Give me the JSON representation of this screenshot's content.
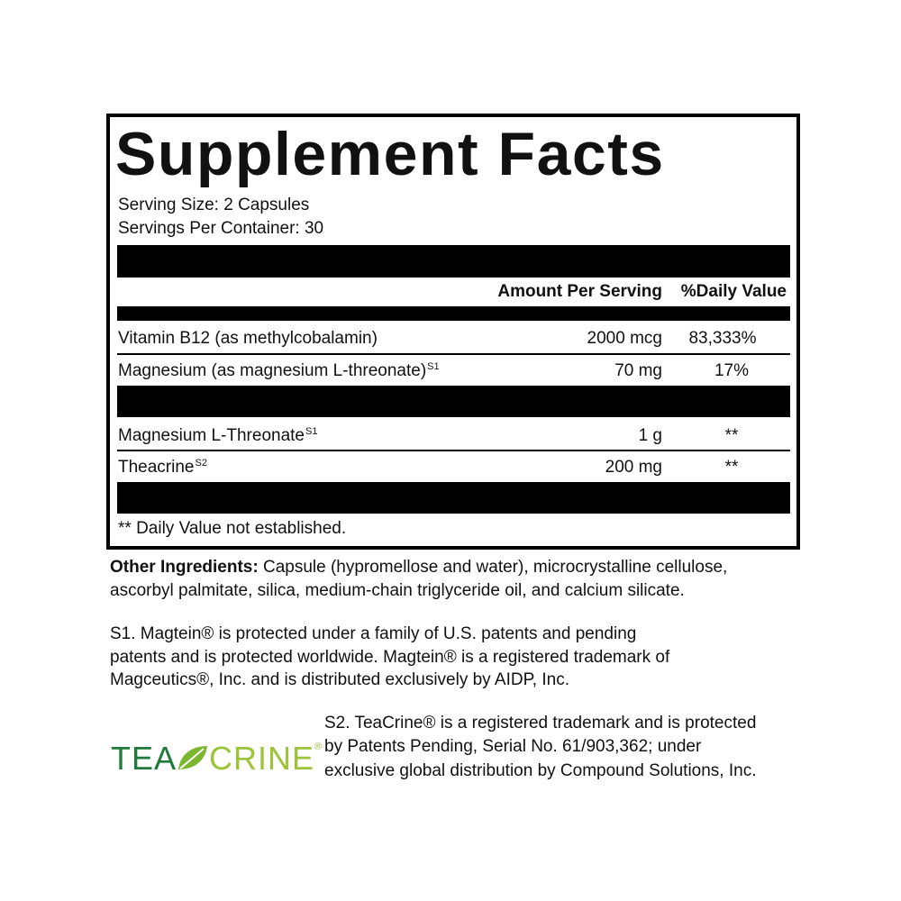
{
  "label": {
    "title": "Supplement Facts",
    "serving_size": "Serving Size: 2 Capsules",
    "servings_per_container": "Servings Per Container: 30",
    "header": {
      "amount": "Amount Per Serving",
      "daily_value": "%Daily Value"
    },
    "rows": [
      {
        "name": "Vitamin B12 (as methylcobalamin)",
        "amount": "2000 mcg",
        "dv": "83,333%"
      },
      {
        "name": "Magnesium (as magnesium L-threonate)",
        "sup": "S1",
        "amount": "70 mg",
        "dv": "17%"
      },
      {
        "name": "Magnesium L-Threonate",
        "sup": "S1",
        "amount": "1 g",
        "dv": "**"
      },
      {
        "name": "Theacrine",
        "sup": "S2",
        "amount": "200 mg",
        "dv": "**"
      }
    ],
    "footnote": "** Daily Value not established."
  },
  "other_ingredients": {
    "label": "Other Ingredients:",
    "lines": [
      " Capsule (hypromellose and water), microcrystalline cellulose,",
      "ascorbyl palmitate, silica, medium-chain triglyceride oil, and calcium silicate."
    ]
  },
  "note_s1": {
    "lines": [
      "S1. Magtein® is protected under a family of U.S. patents and pending",
      "patents and is protected worldwide. Magtein® is a registered trademark of",
      "Magceutics®, Inc. and is distributed exclusively by AIDP, Inc."
    ]
  },
  "logo": {
    "left": "TEA",
    "right": "CRINE",
    "mark": "®"
  },
  "note_s2": {
    "lines": [
      "S2. TeaCrine® is a registered trademark and is protected",
      "by Patents Pending, Serial No. 61/903,362; under",
      "exclusive global distribution by Compound Solutions, Inc."
    ]
  }
}
